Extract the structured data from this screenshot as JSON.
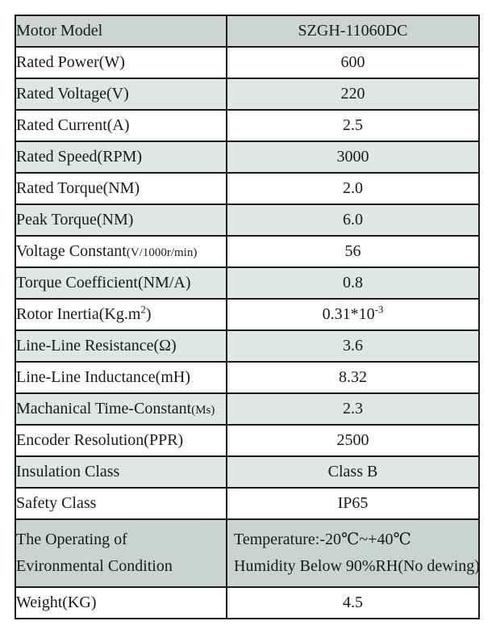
{
  "page": {
    "background": "#ffffff"
  },
  "table": {
    "border_color": "#1c1c1c",
    "text_color": "#1a1a1a",
    "shade_colors": {
      "dark": "#ccd5d1",
      "light": "#dfe6e4",
      "env": "#cbd3d0",
      "white": "#ffffff"
    },
    "columns": [
      "parameter",
      "value"
    ],
    "rows": [
      {
        "shade": "dark",
        "label": [
          [
            {
              "t": "Motor Model"
            }
          ]
        ],
        "value": [
          [
            {
              "t": "SZGH-11060DC"
            }
          ]
        ]
      },
      {
        "shade": "white",
        "label": [
          [
            {
              "t": "Rated Power(W)"
            }
          ]
        ],
        "value": [
          [
            {
              "t": "600"
            }
          ]
        ]
      },
      {
        "shade": "light",
        "label": [
          [
            {
              "t": "Rated Voltage(V)"
            }
          ]
        ],
        "value": [
          [
            {
              "t": "220"
            }
          ]
        ]
      },
      {
        "shade": "white",
        "label": [
          [
            {
              "t": "Rated Current(A)"
            }
          ]
        ],
        "value": [
          [
            {
              "t": "2.5"
            }
          ]
        ]
      },
      {
        "shade": "light",
        "label": [
          [
            {
              "t": "Rated Speed(RPM)"
            }
          ]
        ],
        "value": [
          [
            {
              "t": "3000"
            }
          ]
        ]
      },
      {
        "shade": "white",
        "label": [
          [
            {
              "t": "Rated Torque(NM)"
            }
          ]
        ],
        "value": [
          [
            {
              "t": "2.0"
            }
          ]
        ]
      },
      {
        "shade": "light",
        "label": [
          [
            {
              "t": "Peak Torque(NM)"
            }
          ]
        ],
        "value": [
          [
            {
              "t": "6.0"
            }
          ]
        ]
      },
      {
        "shade": "white",
        "label": [
          [
            {
              "t": "Voltage Constant"
            },
            {
              "t": "(V/1000r/min)",
              "style": "small"
            }
          ]
        ],
        "value": [
          [
            {
              "t": "56"
            }
          ]
        ]
      },
      {
        "shade": "light",
        "label": [
          [
            {
              "t": "Torque Coefficient(NM/A)"
            }
          ]
        ],
        "value": [
          [
            {
              "t": "0.8"
            }
          ]
        ]
      },
      {
        "shade": "white",
        "label": [
          [
            {
              "t": "Rotor Inertia(Kg.m"
            },
            {
              "t": "2",
              "style": "sup"
            },
            {
              "t": ")"
            }
          ]
        ],
        "value": [
          [
            {
              "t": "0.31*10"
            },
            {
              "t": "-3",
              "style": "sup"
            }
          ]
        ]
      },
      {
        "shade": "light",
        "label": [
          [
            {
              "t": "Line-Line Resistance(Ω)"
            }
          ]
        ],
        "value": [
          [
            {
              "t": "3.6"
            }
          ]
        ]
      },
      {
        "shade": "white",
        "label": [
          [
            {
              "t": "Line-Line Inductance(mH)"
            }
          ]
        ],
        "value": [
          [
            {
              "t": "8.32"
            }
          ]
        ]
      },
      {
        "shade": "light",
        "label": [
          [
            {
              "t": "Machanical Time-Constant"
            },
            {
              "t": "(Ms)",
              "style": "small"
            }
          ]
        ],
        "value": [
          [
            {
              "t": "2.3"
            }
          ]
        ]
      },
      {
        "shade": "white",
        "label": [
          [
            {
              "t": "Encoder Resolution(PPR)"
            }
          ]
        ],
        "value": [
          [
            {
              "t": "2500"
            }
          ]
        ]
      },
      {
        "shade": "light",
        "label": [
          [
            {
              "t": "Insulation Class"
            }
          ]
        ],
        "value": [
          [
            {
              "t": "Class B"
            }
          ]
        ]
      },
      {
        "shade": "white",
        "label": [
          [
            {
              "t": "Safety Class"
            }
          ]
        ],
        "value": [
          [
            {
              "t": "IP65"
            }
          ]
        ]
      },
      {
        "shade": "env",
        "tall": true,
        "value_align": "left",
        "label": [
          [
            {
              "t": "The Operating of"
            }
          ],
          [
            {
              "t": "Evironmental Condition"
            }
          ]
        ],
        "value": [
          [
            {
              "t": "Temperature:-20℃~+40℃"
            }
          ],
          [
            {
              "t": "Humidity Below 90%RH(No dewing)"
            }
          ]
        ]
      },
      {
        "shade": "white",
        "label": [
          [
            {
              "t": "Weight(KG)"
            }
          ]
        ],
        "value": [
          [
            {
              "t": "4.5"
            }
          ]
        ]
      }
    ]
  }
}
